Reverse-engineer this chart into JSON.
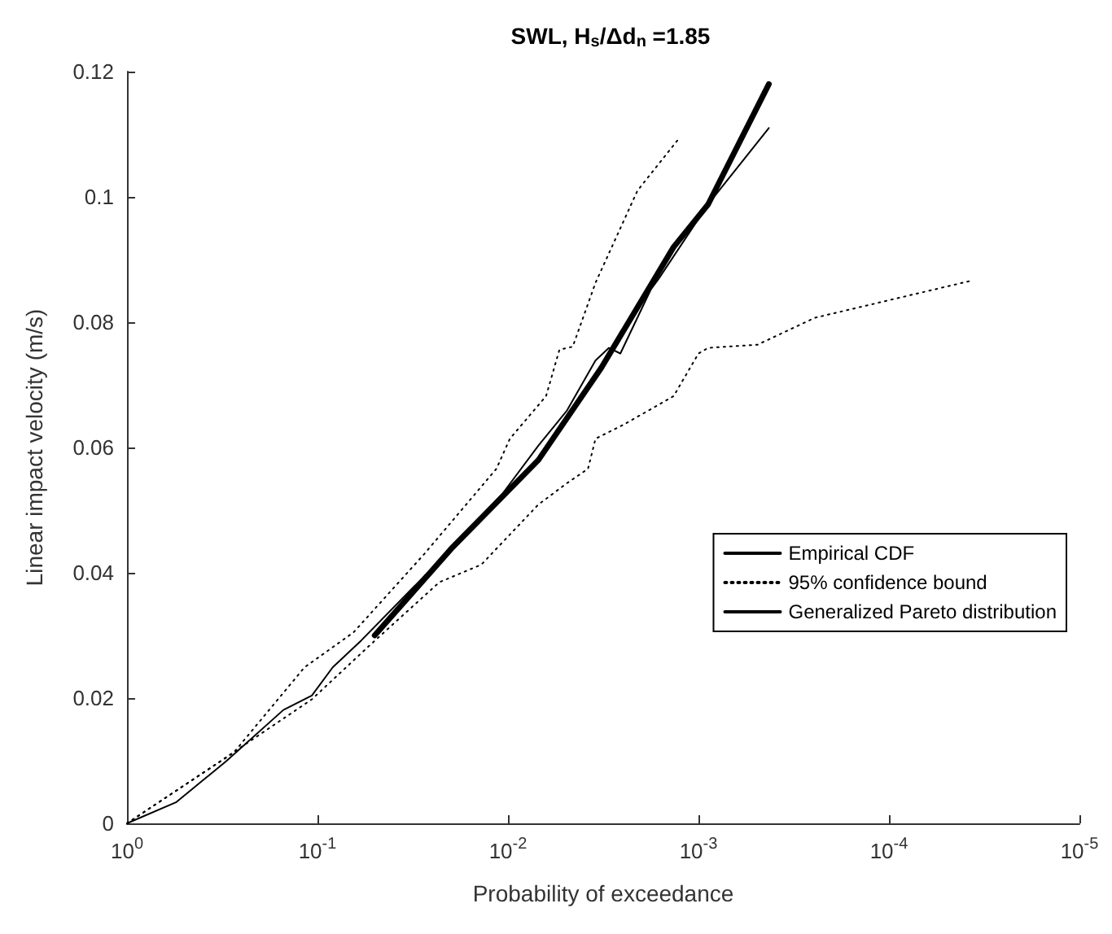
{
  "chart_data": {
    "type": "line",
    "title": "SWL, H$_{s}$/Δd$_{n}$ =1.85",
    "xlabel": "Probability of exceedance",
    "ylabel": "Linear impact velocity (m/s)",
    "log": "x",
    "xlim": [
      1,
      1e-05
    ],
    "xticks": [
      {
        "value": 1,
        "label": "10$^{0}$"
      },
      {
        "value": 0.1,
        "label": "10$^{-1}$"
      },
      {
        "value": 0.01,
        "label": "10$^{-2}$"
      },
      {
        "value": 0.001,
        "label": "10$^{-3}$"
      },
      {
        "value": 0.0001,
        "label": "10$^{-4}$"
      },
      {
        "value": 1e-05,
        "label": "10$^{-5}$"
      }
    ],
    "ylim": [
      0,
      0.12
    ],
    "yticks": [
      0,
      0.02,
      0.04,
      0.06,
      0.08,
      0.1,
      0.12
    ],
    "grid": false,
    "legend": "right",
    "marker": "none",
    "series": [
      {
        "name": "Empirical CDF",
        "color": "#000000",
        "line_style": "solid",
        "x": [
          1,
          0.55,
          0.302,
          0.151,
          0.107,
          0.0832,
          0.0589,
          0.0195,
          0.0107,
          0.00692,
          0.0049,
          0.00347,
          0.00295,
          0.00257,
          0.00178,
          0.00162,
          0.00089,
          0.000427
        ],
        "values": [
          0,
          0.0034,
          0.0099,
          0.0181,
          0.0204,
          0.0249,
          0.0292,
          0.0441,
          0.0526,
          0.0603,
          0.0659,
          0.0739,
          0.0759,
          0.075,
          0.0852,
          0.0869,
          0.0988,
          0.111
        ]
      },
      {
        "name": "95% confidence bound",
        "color": "#000000",
        "line_style": "dotted",
        "x": [
          1,
          0.275,
          0.117,
          0.0646,
          0.0275,
          0.0115,
          0.00977,
          0.00631,
          0.00537,
          0.00457,
          0.00347,
          0.00209,
          0.00129
        ],
        "values": [
          0,
          0.0113,
          0.0249,
          0.0305,
          0.043,
          0.0566,
          0.0614,
          0.0682,
          0.0756,
          0.0761,
          0.0863,
          0.101,
          0.109
        ]
      },
      {
        "color": "#000000",
        "line_style": "dotted",
        "x": [
          1,
          0.355,
          0.107,
          0.0537,
          0.0229,
          0.0138,
          0.00692,
          0.0049,
          0.0038,
          0.00347,
          0.00245,
          0.00135,
          0.001,
          0.00089,
          0.00049,
          0.000245,
          3.72e-05
        ],
        "values": [
          0,
          0.0091,
          0.0198,
          0.0283,
          0.0385,
          0.0413,
          0.0509,
          0.0543,
          0.0566,
          0.0614,
          0.0637,
          0.0682,
          0.075,
          0.0759,
          0.0764,
          0.0807,
          0.0866
        ]
      },
      {
        "name": "Generalized Pareto distribution",
        "color": "#000000",
        "line_style": "solid",
        "x": [
          0.0501,
          0.0195,
          0.00692,
          0.00324,
          0.00135,
          0.00089,
          0.000427
        ],
        "values": [
          0.03,
          0.0441,
          0.058,
          0.0727,
          0.092,
          0.0988,
          0.118
        ]
      }
    ]
  }
}
